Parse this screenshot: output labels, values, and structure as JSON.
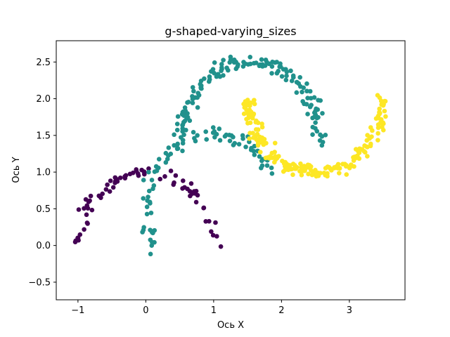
{
  "chart_data": {
    "type": "scatter",
    "title": "g-shaped-varying_sizes",
    "xlabel": "Ось X",
    "ylabel": "Ось Y",
    "xlim": [
      -1.32,
      3.82
    ],
    "ylim": [
      -0.74,
      2.79
    ],
    "x_ticks": [
      -1,
      0,
      1,
      2,
      3
    ],
    "x_tick_labels": [
      "−1",
      "0",
      "1",
      "2",
      "3"
    ],
    "y_ticks": [
      -0.5,
      0.0,
      0.5,
      1.0,
      1.5,
      2.0,
      2.5
    ],
    "y_tick_labels": [
      "−0.5",
      "0.0",
      "0.5",
      "1.0",
      "1.5",
      "2.0",
      "2.5"
    ],
    "grid": false,
    "legend": "none",
    "colors": {
      "purple": "#440154",
      "teal": "#21918c",
      "yellow": "#fde725"
    },
    "series": [
      {
        "color": "#440154",
        "shape": "arc",
        "arc": {
          "cx": 0.0,
          "cy": 0.0,
          "r": 1.0,
          "t_start_deg": 0,
          "t_end_deg": 180
        },
        "noise": 0.05,
        "n_points": 75
      },
      {
        "color": "#21918c",
        "shape": "arc",
        "arc": {
          "cx": 1.0,
          "cy": 0.5,
          "r": 1.0,
          "t_start_deg": 150,
          "t_end_deg": 330,
          "y_sign": -1
        },
        "noise": 0.05,
        "n_points": 90
      },
      {
        "color": "#21918c",
        "shape": "arc",
        "arc": {
          "cx": 1.55,
          "cy": 1.5,
          "r": 1.0,
          "t_start_deg": -5,
          "t_end_deg": 180
        },
        "noise": 0.05,
        "n_points": 150
      },
      {
        "color": "#fde725",
        "shape": "arc",
        "arc": {
          "cx": 2.5,
          "cy": 2.0,
          "r": 1.0,
          "t_start_deg": 0,
          "t_end_deg": 180,
          "y_sign": -1
        },
        "noise": 0.05,
        "n_points": 200
      }
    ]
  }
}
